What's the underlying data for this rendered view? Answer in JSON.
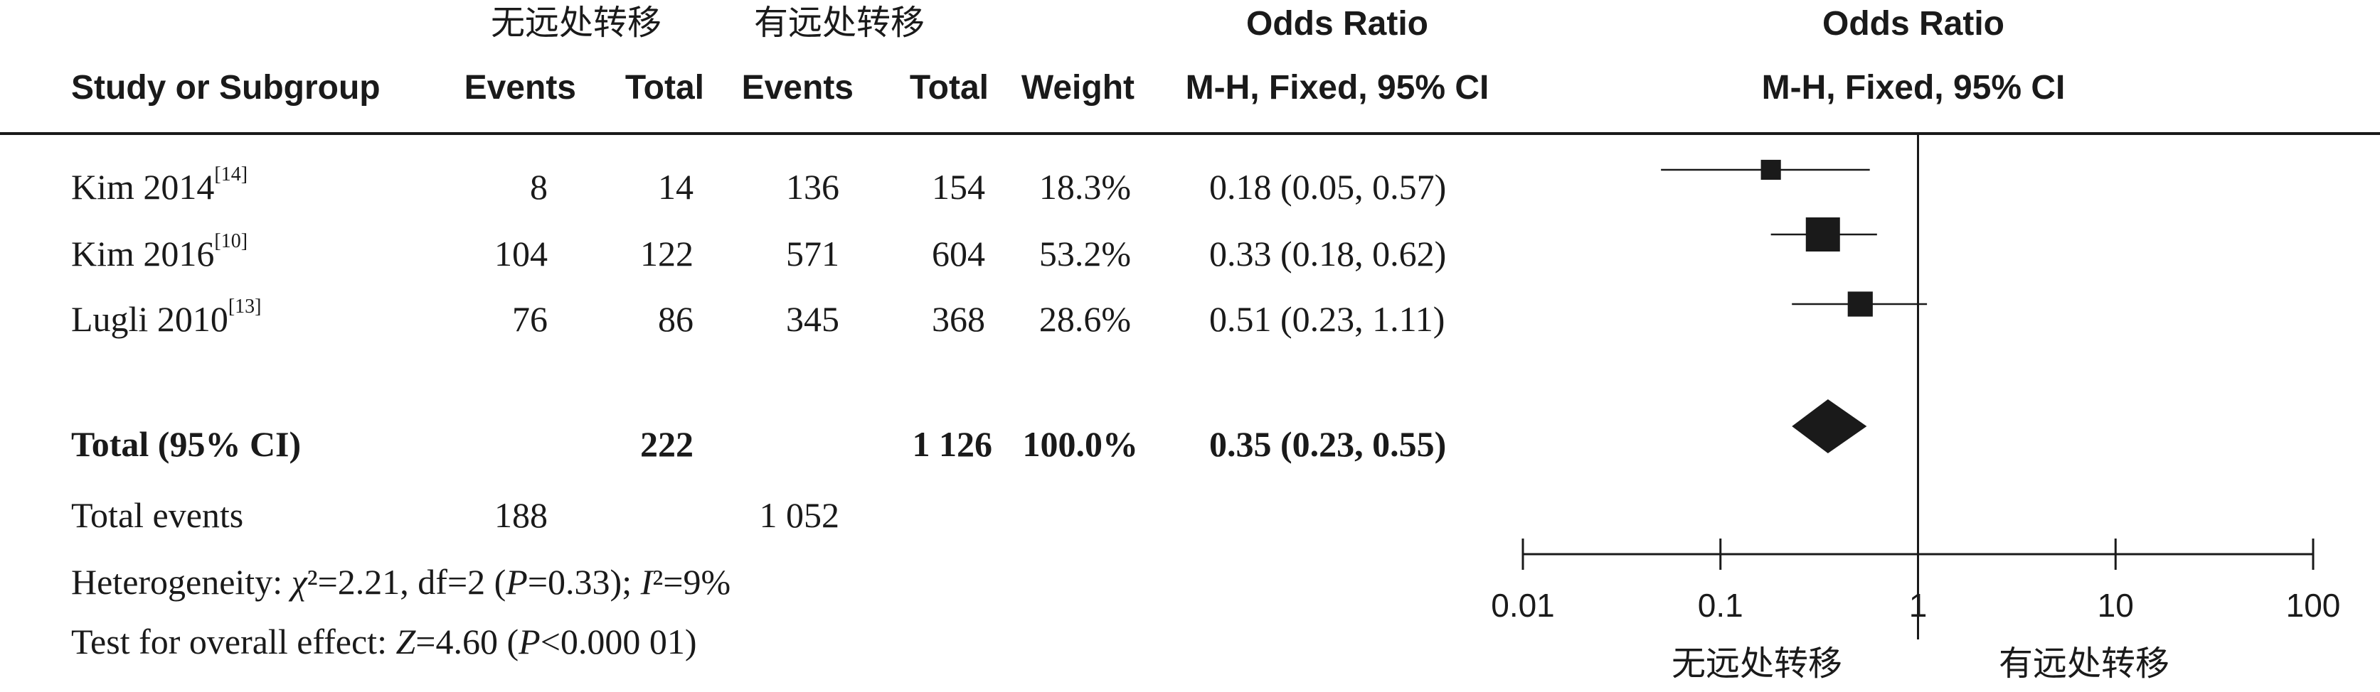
{
  "header": {
    "group1_name": "无远处转移",
    "group2_name": "有远处转移",
    "col_study": "Study or Subgroup",
    "col_events1": "Events",
    "col_total1": "Total",
    "col_events2": "Events",
    "col_total2": "Total",
    "col_weight": "Weight",
    "or_title": "Odds Ratio",
    "or_method": "M-H, Fixed, 95% CI",
    "plot_title": "Odds Ratio",
    "plot_method": "M-H, Fixed, 95% CI"
  },
  "studies": [
    {
      "name": "Kim 2014",
      "ref": "[14]",
      "events1": "8",
      "total1": "14",
      "events2": "136",
      "total2": "154",
      "weight": "18.3%",
      "ci_text": "0.18 (0.05, 0.57)"
    },
    {
      "name": "Kim 2016",
      "ref": "[10]",
      "events1": "104",
      "total1": "122",
      "events2": "571",
      "total2": "604",
      "weight": "53.2%",
      "ci_text": "0.33 (0.18, 0.62)"
    },
    {
      "name": "Lugli 2010",
      "ref": "[13]",
      "events1": "76",
      "total1": "86",
      "events2": "345",
      "total2": "368",
      "weight": "28.6%",
      "ci_text": "0.51 (0.23, 1.11)"
    }
  ],
  "total_row": {
    "label": "Total (95% CI)",
    "total1": "222",
    "total2": "1 126",
    "weight": "100.0%",
    "ci_text": "0.35 (0.23, 0.55)"
  },
  "events_row": {
    "label": "Total events",
    "events1": "188",
    "events2": "1 052"
  },
  "heterogeneity": {
    "prefix": "Heterogeneity: ",
    "chi": "χ",
    "chi_val": "²=2.21, df=2 (",
    "p": "P",
    "p_val": "=0.33); ",
    "i": "I",
    "i_val": "²=9%"
  },
  "overall": {
    "prefix": "Test for overall effect: ",
    "z": "Z",
    "z_val": "=4.60 (",
    "p": "P",
    "p_val": "<0.000 01)"
  },
  "axis": {
    "favours_left": "无远处转移",
    "favours_right": "有远处转移"
  },
  "chart_data": {
    "type": "forest",
    "scale": "log",
    "xlim": [
      0.01,
      100
    ],
    "ticks": [
      0.01,
      0.1,
      1,
      10,
      100
    ],
    "tick_labels": [
      "0.01",
      "0.1",
      "1",
      "10",
      "100"
    ],
    "reference_line": 1,
    "colors": {
      "marker": "#1a1a1a",
      "line": "#1a1a1a"
    },
    "studies": [
      {
        "name": "Kim 2014",
        "or": 0.18,
        "lower": 0.05,
        "upper": 0.57,
        "weight": 18.3
      },
      {
        "name": "Kim 2016",
        "or": 0.33,
        "lower": 0.18,
        "upper": 0.62,
        "weight": 53.2
      },
      {
        "name": "Lugli 2010",
        "or": 0.51,
        "lower": 0.23,
        "upper": 1.11,
        "weight": 28.6
      }
    ],
    "pooled": {
      "or": 0.35,
      "lower": 0.23,
      "upper": 0.55
    }
  }
}
